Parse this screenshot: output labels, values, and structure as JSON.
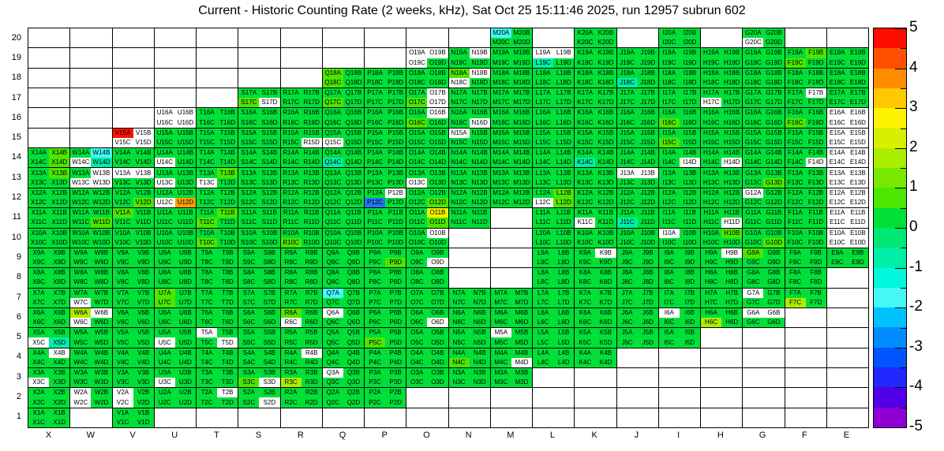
{
  "title": "Current - Historic Counting Rate (2 weeks, kHz), Sat Oct 25 15:11:46 2025, run 12957 subrun 602",
  "chart_data": {
    "type": "heatmap",
    "title": "Current - Historic Counting Rate (2 weeks, kHz), Sat Oct 25 15:11:46 2025, run 12957 subrun 602",
    "x_categories": [
      "X",
      "W",
      "V",
      "U",
      "T",
      "S",
      "R",
      "Q",
      "P",
      "O",
      "N",
      "M",
      "L",
      "K",
      "J",
      "I",
      "H",
      "G",
      "F",
      "E"
    ],
    "y_categories": [
      20,
      19,
      18,
      17,
      16,
      15,
      14,
      13,
      12,
      11,
      10,
      9,
      8,
      7,
      6,
      5,
      4,
      3,
      2,
      1
    ],
    "quadrants": [
      "A",
      "B",
      "C",
      "D"
    ],
    "zlim": [
      -5,
      5
    ],
    "grid": true,
    "legend_position": "right-colorbar",
    "colorbar_ticks": [
      "5",
      "4",
      "3",
      "2",
      "1",
      "0",
      "-1",
      "-2",
      "-3",
      "-4",
      "-5"
    ],
    "colorbar_bands": [
      "#FF0C00",
      "#FF5000",
      "#FF8C00",
      "#FFC800",
      "#FFF400",
      "#D8F000",
      "#ACEC00",
      "#78E800",
      "#4CE600",
      "#00E038",
      "#00E874",
      "#00EFA8",
      "#00F8DC",
      "#44F8F8",
      "#00C2FF",
      "#008CFF",
      "#0055FF",
      "#1E28FF",
      "#5000E6",
      "#8E00D2"
    ],
    "colors": {
      "green": "#00E038",
      "bg": "#4CE600",
      "yg": "#ACEC00",
      "y": "#F2F200",
      "o": "#FFA000",
      "r": "#FF1200",
      "t": "#00EFA8",
      "c": "#44F8F8",
      "b": "#2278F0",
      "w": "#FFFFFF"
    },
    "class_values_kHz": {
      "green": 0.2,
      "bg": 0.8,
      "yg": 1.7,
      "y": 2.3,
      "o": 3.7,
      "r": 5,
      "t": -0.8,
      "c": -2,
      "b": -3,
      "w": null
    },
    "present": {
      "20": [
        "M",
        "K",
        "I",
        "G"
      ],
      "19": [
        "O",
        "N",
        "M",
        "L",
        "K",
        "J",
        "I",
        "H",
        "G",
        "F",
        "E"
      ],
      "18": [
        "Q",
        "P",
        "O",
        "N",
        "M",
        "L",
        "K",
        "J",
        "I",
        "H",
        "G",
        "F",
        "E"
      ],
      "17": [
        "S",
        "R",
        "Q",
        "P",
        "O",
        "N",
        "M",
        "L",
        "K",
        "J",
        "I",
        "H",
        "G",
        "F",
        "E"
      ],
      "16": [
        "U",
        "T",
        "S",
        "R",
        "Q",
        "P",
        "O",
        "N",
        "M",
        "L",
        "K",
        "J",
        "I",
        "H",
        "G",
        "F",
        "E"
      ],
      "15": [
        "V",
        "U",
        "T",
        "S",
        "R",
        "Q",
        "P",
        "O",
        "N",
        "M",
        "L",
        "K",
        "J",
        "I",
        "H",
        "G",
        "F",
        "E"
      ],
      "14": [
        "X",
        "W",
        "V",
        "U",
        "T",
        "S",
        "R",
        "Q",
        "P",
        "O",
        "N",
        "M",
        "L",
        "K",
        "J",
        "I",
        "H",
        "G",
        "F",
        "E"
      ],
      "13": [
        "X",
        "W",
        "V",
        "U",
        "T",
        "S",
        "R",
        "Q",
        "P",
        "O",
        "N",
        "M",
        "L",
        "K",
        "J",
        "I",
        "H",
        "G",
        "F",
        "E"
      ],
      "12": [
        "X",
        "W",
        "V",
        "U",
        "T",
        "S",
        "R",
        "Q",
        "P",
        "O",
        "N",
        "M",
        "L",
        "K",
        "J",
        "I",
        "H",
        "G",
        "F",
        "E"
      ],
      "11": [
        "X",
        "W",
        "V",
        "U",
        "T",
        "S",
        "R",
        "Q",
        "P",
        "O",
        "N",
        "L",
        "K",
        "J",
        "I",
        "H",
        "G",
        "F",
        "E"
      ],
      "10": [
        "X",
        "W",
        "V",
        "U",
        "T",
        "S",
        "R",
        "Q",
        "P",
        "O",
        "L",
        "K",
        "J",
        "I",
        "H",
        "G",
        "F",
        "E"
      ],
      "9": [
        "X",
        "W",
        "V",
        "U",
        "T",
        "S",
        "R",
        "Q",
        "P",
        "O",
        "L",
        "K",
        "J",
        "I",
        "H",
        "G",
        "F",
        "E"
      ],
      "8": [
        "X",
        "W",
        "V",
        "U",
        "T",
        "S",
        "R",
        "Q",
        "P",
        "O",
        "L",
        "K",
        "J",
        "I",
        "H",
        "G",
        "F"
      ],
      "7": [
        "X",
        "W",
        "V",
        "U",
        "T",
        "S",
        "R",
        "Q",
        "P",
        "O",
        "N",
        "M",
        "L",
        "K",
        "J",
        "I",
        "H",
        "G",
        "F"
      ],
      "6": [
        "X",
        "W",
        "V",
        "U",
        "T",
        "S",
        "R",
        "Q",
        "P",
        "O",
        "N",
        "M",
        "L",
        "K",
        "J",
        "I",
        "H",
        "G"
      ],
      "5": [
        "X",
        "W",
        "V",
        "U",
        "T",
        "S",
        "R",
        "Q",
        "P",
        "O",
        "N",
        "M",
        "L",
        "K",
        "J",
        "I"
      ],
      "4": [
        "X",
        "W",
        "V",
        "U",
        "T",
        "S",
        "R",
        "Q",
        "P",
        "O",
        "N",
        "M",
        "L",
        "K"
      ],
      "3": [
        "X",
        "W",
        "V",
        "U",
        "T",
        "S",
        "R",
        "Q",
        "P",
        "O",
        "N",
        "M"
      ],
      "2": [
        "X",
        "W",
        "V",
        "U",
        "T",
        "S",
        "R",
        "Q",
        "P"
      ],
      "1": [
        "X",
        "V"
      ]
    },
    "overrides": {
      "M20A": "c",
      "G20C": "w",
      "O19A": "w",
      "O19B": "w",
      "O19C": "w",
      "N19B": "w",
      "L19A": "w",
      "L19B": "w",
      "L19C": "t",
      "F19B": "bg",
      "F19C": "bg",
      "Q18A": "bg",
      "Q18C": "bg",
      "N18A": "bg",
      "N18B": "w",
      "N18C": "w",
      "J18C": "t",
      "S17C": "bg",
      "S17D": "w",
      "Q17C": "bg",
      "O17B": "w",
      "O17C": "bg",
      "O17D": "w",
      "H17C": "w",
      "F17B": "w",
      "U16A": "w",
      "U16B": "w",
      "U16C": "w",
      "U16D": "w",
      "O16B": "w",
      "O16C": "bg",
      "N16D": "w",
      "I16C": "bg",
      "F16C": "bg",
      "E16A": "w",
      "E16B": "w",
      "E16C": "w",
      "E16D": "w",
      "V15A": "r",
      "V15B": "w",
      "V15C": "w",
      "V15D": "w",
      "R15D": "w",
      "Q15C": "w",
      "N15A": "w",
      "I15C": "bg",
      "E15A": "w",
      "E15B": "w",
      "E15C": "w",
      "E15D": "w",
      "X14B": "bg",
      "X14D": "bg",
      "W14B": "c",
      "W14C": "w",
      "W14D": "t",
      "U14C": "w",
      "Q14C": "t",
      "K14C": "t",
      "I14D": "w",
      "H14D": "w",
      "F14D": "w",
      "E14A": "w",
      "E14B": "w",
      "E14C": "w",
      "E14D": "w",
      "X13B": "bg",
      "W13B": "w",
      "W13C": "w",
      "W13D": "w",
      "V13A": "w",
      "V13B": "w",
      "U13C": "w",
      "T13B": "bg",
      "T13C": "w",
      "O13C": "w",
      "J13A": "w",
      "J13B": "w",
      "G13D": "bg",
      "E13A": "w",
      "E13B": "w",
      "E13C": "w",
      "E13D": "w",
      "V12D": "bg",
      "U12C": "w",
      "U12D": "o",
      "P12B": "w",
      "P12C": "b",
      "O12D": "bg",
      "L12B": "bg",
      "L12C": "w",
      "L12D": "bg",
      "G12A": "w",
      "E12A": "w",
      "E12B": "w",
      "E12C": "w",
      "E12D": "w",
      "W11D": "bg",
      "V11A": "bg",
      "T11B": "bg",
      "T11C": "bg",
      "O11B": "y",
      "O11D": "bg",
      "K11C": "w",
      "J11C": "t",
      "H11D": "w",
      "E11A": "w",
      "E11B": "w",
      "E11C": "w",
      "E11D": "w",
      "T10C": "bg",
      "R10C": "bg",
      "O10B": "w",
      "I10A": "w",
      "H10B": "bg",
      "G10D": "bg",
      "E10A": "w",
      "E10B": "w",
      "E10C": "w",
      "E10D": "w",
      "P9D": "bg",
      "O9D": "w",
      "K9B": "w",
      "H9B": "w",
      "G9A": "bg",
      "W7C": "w",
      "U7A": "bg",
      "U7C": "bg",
      "Q7A": "c",
      "G7A": "w",
      "F7C": "yg",
      "W6A": "yg",
      "W6B": "w",
      "W6C": "w",
      "R6A": "bg",
      "R6C": "w",
      "Q6A": "w",
      "O6D": "w",
      "I6A": "w",
      "H6C": "yg",
      "G6A": "w",
      "G6B": "w",
      "X5C": "w",
      "X5D": "t",
      "U5C": "w",
      "T5A": "w",
      "T5D": "w",
      "P5C": "bg",
      "M5A": "w",
      "X4B": "w",
      "R4B": "w",
      "N4C": "bg",
      "M4D": "w",
      "X3C": "w",
      "U3C": "w",
      "S3C": "bg",
      "S3D": "w",
      "R3C": "yg",
      "Q3A": "w",
      "W2A": "w",
      "W2C": "w",
      "V2A": "w",
      "V2C": "w",
      "T2B": "w",
      "S2D": "w"
    }
  }
}
